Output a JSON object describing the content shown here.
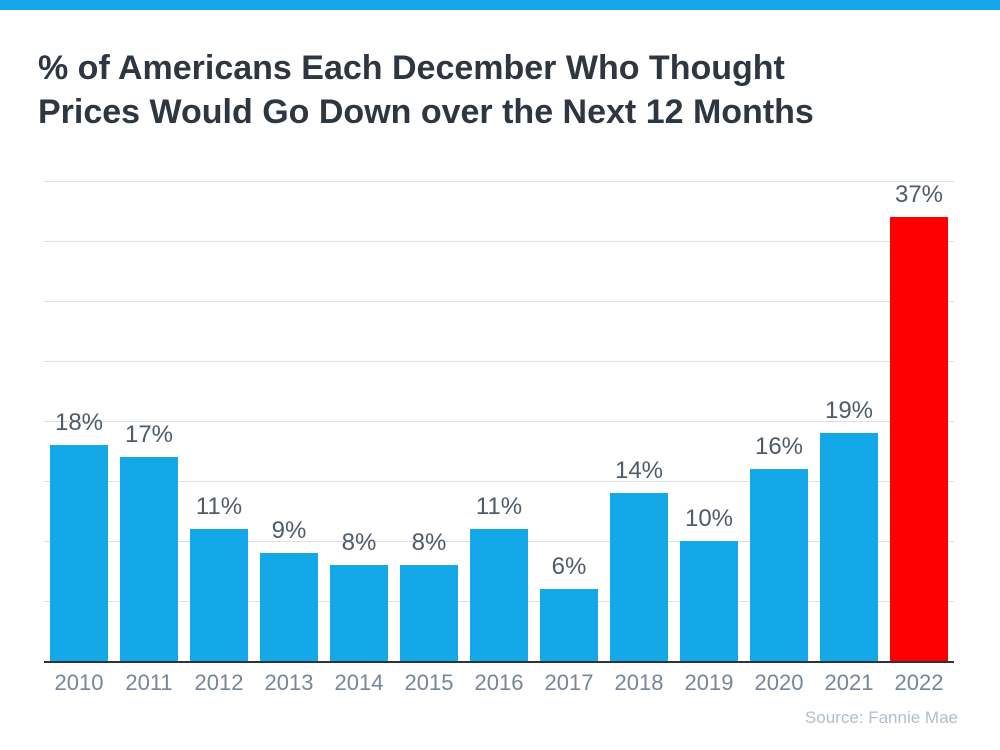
{
  "header": {
    "accent_bar_color": "#14A8E8",
    "title_line1": "% of Americans Each December Who Thought",
    "title_line2": "Prices Would Go Down over the Next 12 Months"
  },
  "chart_data": {
    "type": "bar",
    "title": "% of Americans Each December Who Thought Prices Would Go Down over the Next 12 Months",
    "categories": [
      "2010",
      "2011",
      "2012",
      "2013",
      "2014",
      "2015",
      "2016",
      "2017",
      "2018",
      "2019",
      "2020",
      "2021",
      "2022"
    ],
    "values": [
      18,
      17,
      11,
      9,
      8,
      8,
      11,
      6,
      14,
      10,
      16,
      19,
      37
    ],
    "data_labels": [
      "18%",
      "17%",
      "11%",
      "9%",
      "8%",
      "8%",
      "11%",
      "6%",
      "14%",
      "10%",
      "16%",
      "19%",
      "37%"
    ],
    "bar_color": "#14A8E8",
    "highlight_color": "#FF0000",
    "highlight_index": 12,
    "xlabel": "",
    "ylabel": "",
    "ylim": [
      0,
      40
    ],
    "grid": true,
    "grid_step": 5,
    "legend_position": "none"
  },
  "footer": {
    "source": "Source: Fannie Mae"
  }
}
